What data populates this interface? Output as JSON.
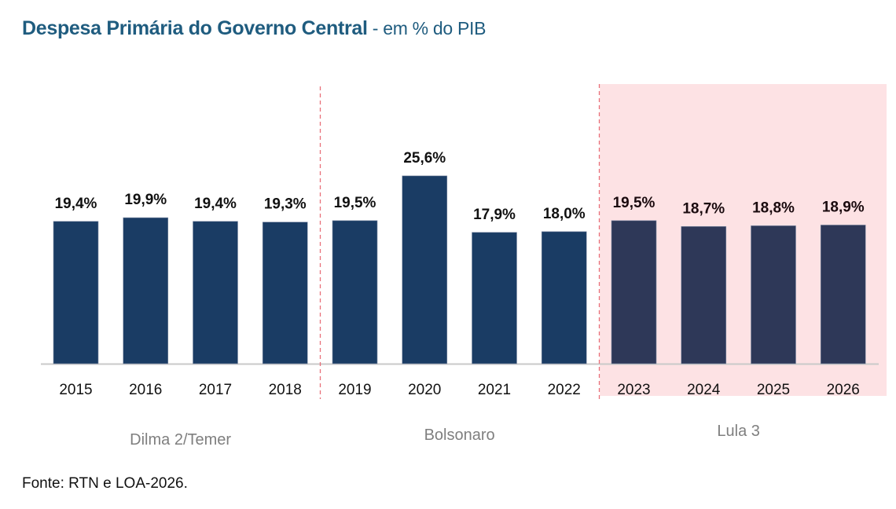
{
  "title": {
    "main": "Despesa Primária do Governo Central",
    "sub": " - em % do PIB"
  },
  "footer": "Fonte: RTN e LOA-2026.",
  "colors": {
    "bar": "#1a3c64",
    "bar_highlight": "#2e3858",
    "highlight_bg": "#fde2e4",
    "divider": "#e8707a",
    "group_label": "#7f7f7f",
    "title": "#1f5c7f"
  },
  "chart_data": {
    "type": "bar",
    "title": "Despesa Primária do Governo Central - em % do PIB",
    "xlabel": "",
    "ylabel": "",
    "ylim": [
      0,
      30
    ],
    "grid": false,
    "categories": [
      "2015",
      "2016",
      "2017",
      "2018",
      "2019",
      "2020",
      "2021",
      "2022",
      "2023",
      "2024",
      "2025",
      "2026"
    ],
    "values": [
      19.4,
      19.9,
      19.4,
      19.3,
      19.5,
      25.6,
      17.9,
      18.0,
      19.5,
      18.7,
      18.8,
      18.9
    ],
    "labels": [
      "19,4%",
      "19,9%",
      "19,4%",
      "19,3%",
      "19,5%",
      "25,6%",
      "17,9%",
      "18,0%",
      "19,5%",
      "18,7%",
      "18,8%",
      "18,9%"
    ],
    "groups": [
      {
        "name": "Dilma 2/Temer",
        "from": 0,
        "to": 3,
        "highlight": false
      },
      {
        "name": "Bolsonaro",
        "from": 4,
        "to": 7,
        "highlight": false
      },
      {
        "name": "Lula 3",
        "from": 8,
        "to": 11,
        "highlight": true
      }
    ]
  }
}
